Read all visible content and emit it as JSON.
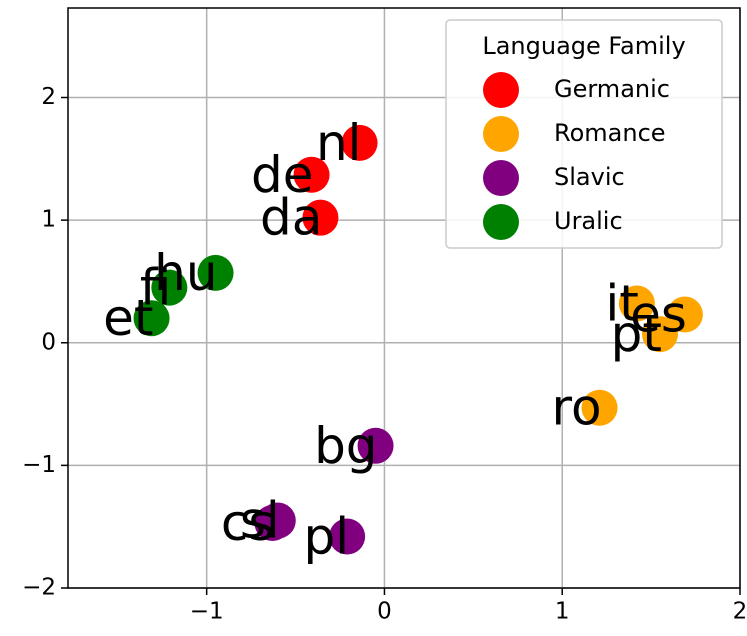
{
  "chart_data": {
    "type": "scatter",
    "legend_title": "Language Family",
    "legend_position": "upper right",
    "grid": true,
    "xlim": [
      -1.78,
      2.0
    ],
    "ylim": [
      -2.0,
      2.73
    ],
    "xticks": [
      {
        "value": -1,
        "label": "−1"
      },
      0,
      1,
      2
    ],
    "yticks": [
      {
        "value": -2,
        "label": "−2"
      },
      {
        "value": -1,
        "label": "−1"
      },
      0,
      1,
      2
    ],
    "series": [
      {
        "name": "Germanic",
        "color": "#ff0000",
        "labels": [
          "nl",
          "de",
          "da"
        ],
        "x": [
          -0.14,
          -0.41,
          -0.36
        ],
        "values": [
          1.63,
          1.37,
          1.02
        ]
      },
      {
        "name": "Romance",
        "color": "#ffa500",
        "labels": [
          "it",
          "es",
          "pt",
          "ro"
        ],
        "x": [
          1.42,
          1.69,
          1.55,
          1.21
        ],
        "values": [
          0.32,
          0.23,
          0.07,
          -0.53
        ]
      },
      {
        "name": "Slavic",
        "color": "#800080",
        "labels": [
          "bg",
          "cs",
          "sl",
          "pl"
        ],
        "x": [
          -0.05,
          -0.63,
          -0.6,
          -0.21
        ],
        "values": [
          -0.84,
          -1.47,
          -1.45,
          -1.58
        ]
      },
      {
        "name": "Uralic",
        "color": "#008000",
        "labels": [
          "hu",
          "fi",
          "et"
        ],
        "x": [
          -0.95,
          -1.21,
          -1.31
        ],
        "values": [
          0.57,
          0.45,
          0.2
        ]
      }
    ]
  }
}
